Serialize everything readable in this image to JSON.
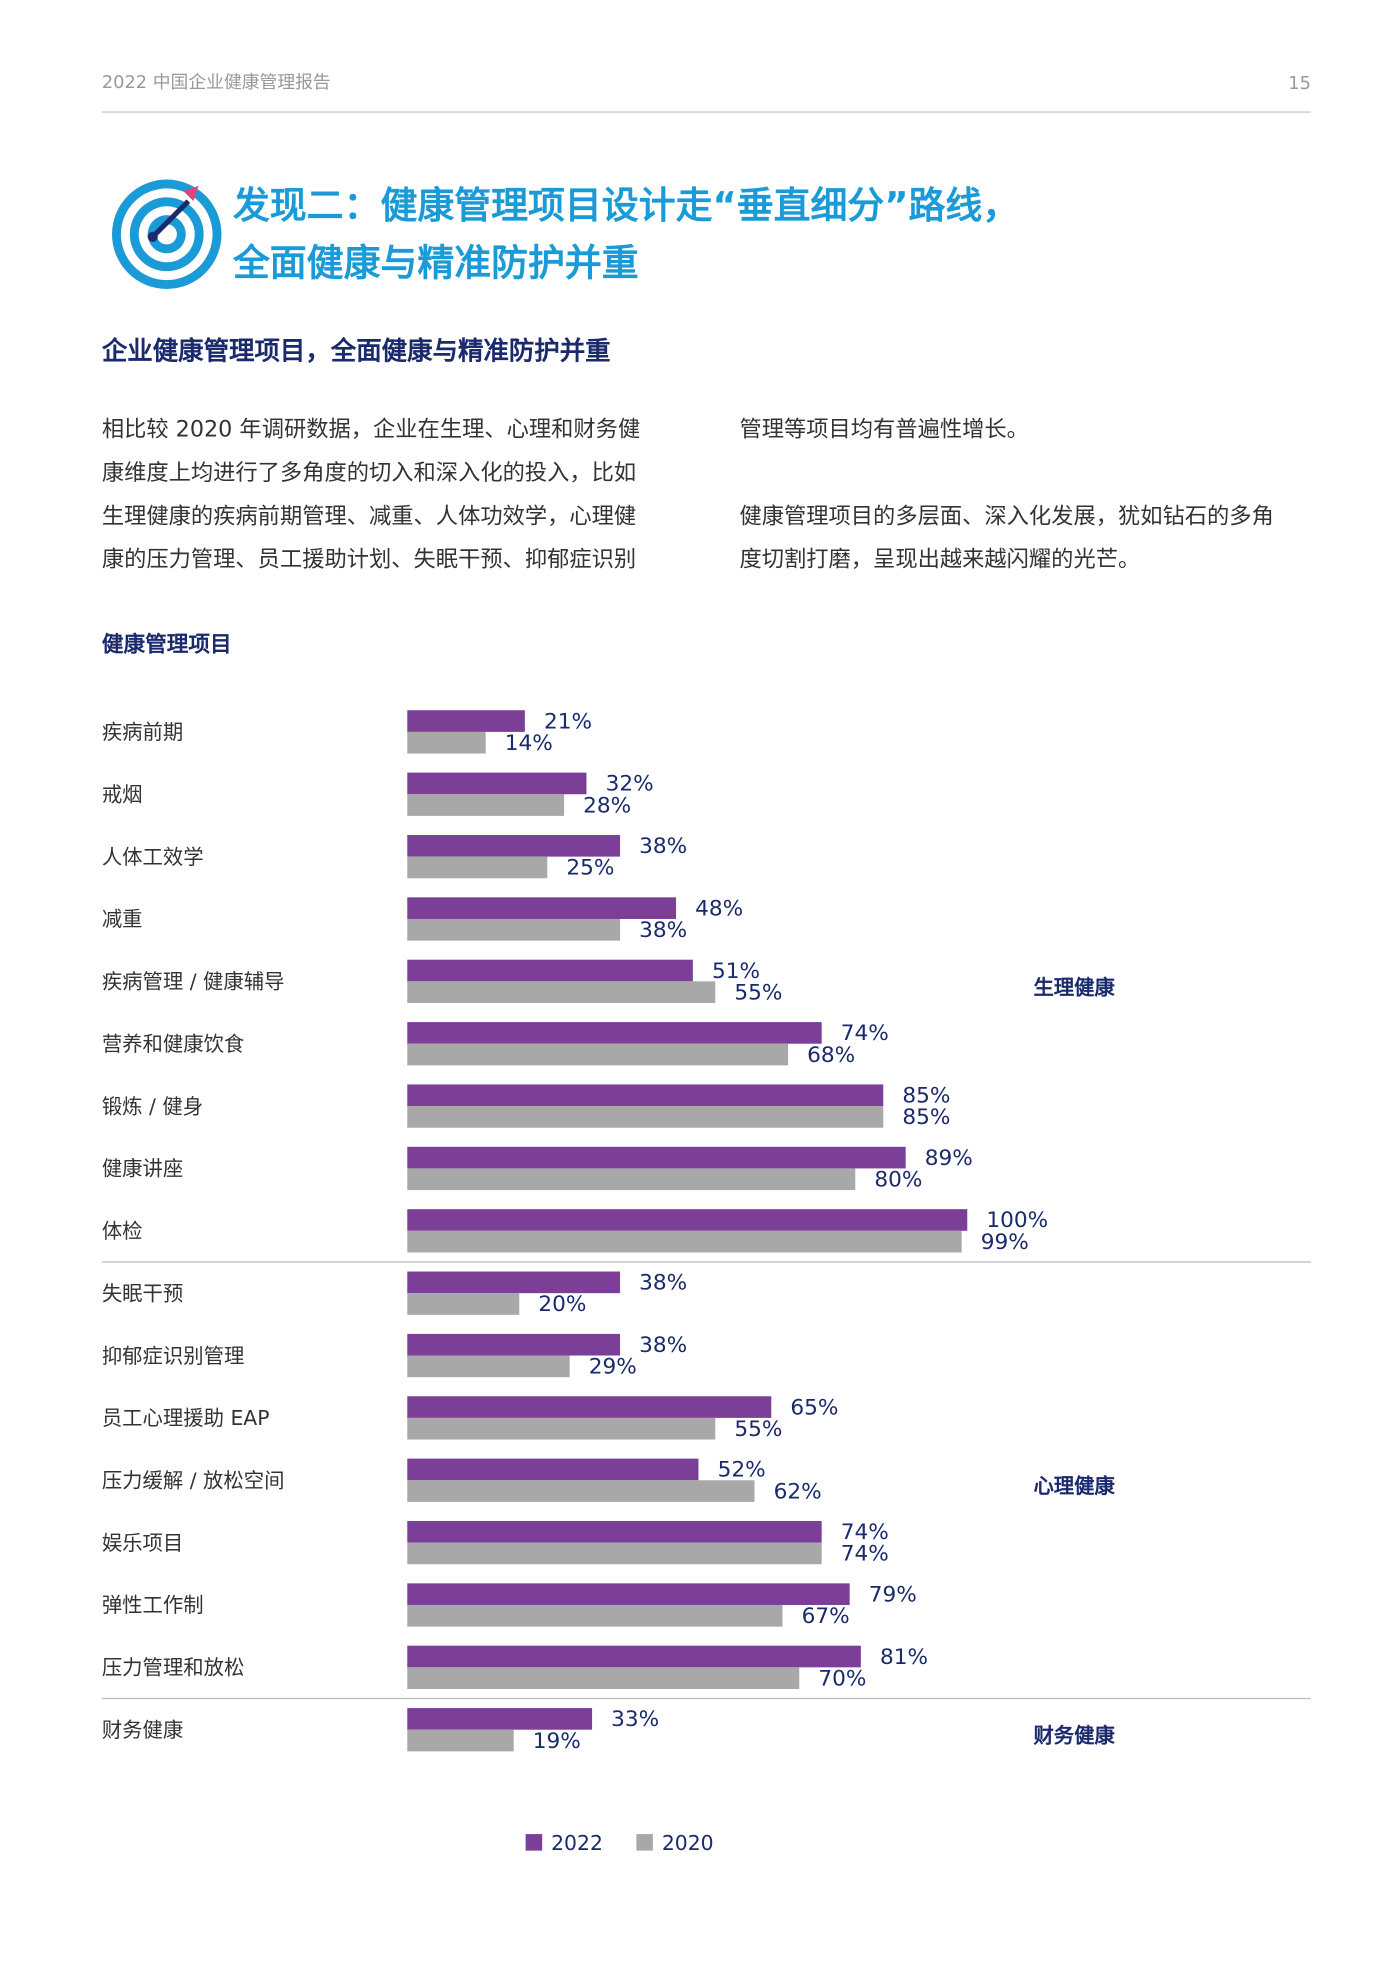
{
  "header": {
    "title": "2022 中国企业健康管理报告",
    "page": "15"
  },
  "title_lines": [
    "发现二：健康管理项目设计走“垂直细分”路线，",
    "全面健康与精准防护并重"
  ],
  "subtitle": "企业健康管理项目，全面健康与精准防护并重",
  "body_left_lines": [
    "相比较 2020 年调研数据，企业在生理、心理和财务健",
    "康维度上均进行了多角度的切入和深入化的投入，比如",
    "生理健康的疾病前期管理、减重、人体功效学，心理健",
    "康的压力管理、员工援助计划、失眠干预、抑郁症识别"
  ],
  "body_right_lines": [
    "管理等项目均有普遍性增长。"
  ],
  "body_right2_lines": [
    "健康管理项目的多层面、深入化发展，犹如钻石的多角",
    "度切割打磨，呈现出越来越闪耀的光芒。"
  ],
  "chart_data": {
    "type": "bar",
    "orientation": "horizontal",
    "title": "健康管理项目",
    "xlim": [
      0,
      100
    ],
    "series": [
      {
        "name": "2022",
        "color": "#7b3f98"
      },
      {
        "name": "2020",
        "color": "#a8a8a8"
      }
    ],
    "groups": [
      {
        "label": "生理健康",
        "categories": [
          "疾病前期",
          "戒烟",
          "人体工效学",
          "减重",
          "疾病管理 / 健康辅导",
          "营养和健康饮食",
          "锻炼 / 健身",
          "健康讲座",
          "体检"
        ],
        "series": [
          {
            "values": [
              21,
              32,
              38,
              48,
              51,
              74,
              85,
              89,
              100
            ],
            "value_labels": [
              "21%",
              "32%",
              "38%",
              "48%",
              "51%",
              "74%",
              "85%",
              "89%",
              "100%"
            ]
          },
          {
            "values": [
              14,
              28,
              25,
              38,
              55,
              68,
              85,
              80,
              99
            ],
            "value_labels": [
              "14%",
              "28%",
              "25%",
              "38%",
              "55%",
              "68%",
              "85%",
              "80%",
              "99%"
            ]
          }
        ]
      },
      {
        "label": "心理健康",
        "categories": [
          "失眠干预",
          "抑郁症识别管理",
          "员工心理援助 EAP",
          "压力缓解 / 放松空间",
          "娱乐项目",
          "弹性工作制",
          "压力管理和放松"
        ],
        "series": [
          {
            "values": [
              38,
              38,
              65,
              52,
              74,
              79,
              81
            ],
            "value_labels": [
              "38%",
              "38%",
              "65%",
              "52%",
              "74%",
              "79%",
              "81%"
            ]
          },
          {
            "values": [
              20,
              29,
              55,
              62,
              74,
              67,
              70
            ],
            "value_labels": [
              "20%",
              "29%",
              "55%",
              "62%",
              "74%",
              "67%",
              "70%"
            ]
          }
        ]
      },
      {
        "label": "财务健康",
        "categories": [
          "财务健康"
        ],
        "series": [
          {
            "values": [
              33
            ],
            "value_labels": [
              "33%"
            ]
          },
          {
            "values": [
              19
            ],
            "value_labels": [
              "19%"
            ]
          }
        ]
      }
    ]
  }
}
